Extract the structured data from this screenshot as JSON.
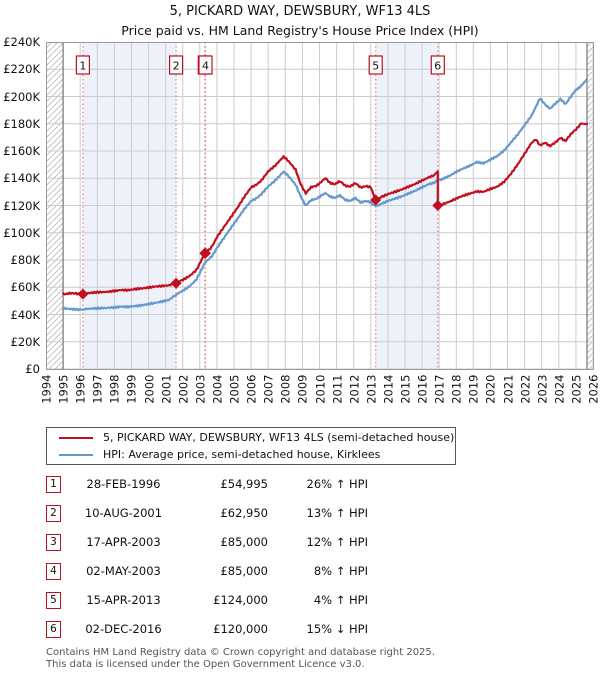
{
  "title": "5, PICKARD WAY, DEWSBURY, WF13 4LS",
  "subtitle": "Price paid vs. HM Land Registry's House Price Index (HPI)",
  "chart_data": {
    "type": "line",
    "x_axis": {
      "min": 1994,
      "max": 2026,
      "ticks": [
        1994,
        1995,
        1996,
        1997,
        1998,
        1999,
        2000,
        2001,
        2002,
        2003,
        2004,
        2005,
        2006,
        2007,
        2008,
        2009,
        2010,
        2011,
        2012,
        2013,
        2014,
        2015,
        2016,
        2017,
        2018,
        2019,
        2020,
        2021,
        2022,
        2023,
        2024,
        2025,
        2026
      ]
    },
    "y_axis": {
      "min": 0,
      "max": 240,
      "unit": "£K",
      "tick_step": 20,
      "tick_labels": [
        "£0",
        "£20K",
        "£40K",
        "£60K",
        "£80K",
        "£100K",
        "£120K",
        "£140K",
        "£160K",
        "£180K",
        "£200K",
        "£220K",
        "£240K"
      ]
    },
    "data_year_range": [
      1995.0,
      2025.65
    ],
    "grid": true,
    "colors": {
      "price_line": "#c01020",
      "hpi_line": "#6699cc",
      "sale_vline": "#ee8888",
      "band": "#edf2fa",
      "grid": "#cccccc",
      "border": "#999999",
      "hatch": "#bbbbbb",
      "marker_box_border": "#bb1122"
    },
    "shaded_bands": [
      [
        1996.16,
        2001.61
      ],
      [
        2003.29,
        2003.33
      ],
      [
        2013.29,
        2016.92
      ]
    ],
    "sales_markers": [
      {
        "n": "1",
        "year": 1996.16,
        "value_k": 55.0
      },
      {
        "n": "2",
        "year": 2001.61,
        "value_k": 62.95
      },
      {
        "n": "3",
        "year": 2003.29,
        "value_k": 85.0
      },
      {
        "n": "4",
        "year": 2003.33,
        "value_k": 85.0
      },
      {
        "n": "5",
        "year": 2013.29,
        "value_k": 124.0
      },
      {
        "n": "6",
        "year": 2016.92,
        "value_k": 120.0
      }
    ],
    "series": [
      {
        "name": "5, PICKARD WAY, DEWSBURY, WF13 4LS (semi-detached house)",
        "color": "#c01020",
        "points": [
          [
            1995.0,
            55.3
          ],
          [
            1995.3,
            55.5
          ],
          [
            1995.6,
            55.2
          ],
          [
            1995.9,
            55.4
          ],
          [
            1996.16,
            55.0
          ],
          [
            1996.5,
            55.4
          ],
          [
            1997.0,
            56.2
          ],
          [
            1997.5,
            56.8
          ],
          [
            1998.0,
            57.6
          ],
          [
            1998.4,
            58.3
          ],
          [
            1998.8,
            58.0
          ],
          [
            1999.2,
            58.6
          ],
          [
            1999.6,
            59.0
          ],
          [
            2000.0,
            59.5
          ],
          [
            2000.4,
            60.2
          ],
          [
            2000.8,
            60.6
          ],
          [
            2001.2,
            61.2
          ],
          [
            2001.61,
            62.95
          ],
          [
            2002.0,
            65.5
          ],
          [
            2002.4,
            68.5
          ],
          [
            2002.8,
            73.0
          ],
          [
            2003.29,
            85.0
          ],
          [
            2003.33,
            85.0
          ],
          [
            2003.7,
            90.0
          ],
          [
            2004.0,
            97.0
          ],
          [
            2004.4,
            104.0
          ],
          [
            2004.8,
            111.0
          ],
          [
            2005.2,
            118.0
          ],
          [
            2005.6,
            126.0
          ],
          [
            2006.0,
            133.0
          ],
          [
            2006.3,
            135.5
          ],
          [
            2006.6,
            138.5
          ],
          [
            2007.0,
            145.0
          ],
          [
            2007.4,
            149.0
          ],
          [
            2007.9,
            156.0
          ],
          [
            2008.2,
            152.0
          ],
          [
            2008.6,
            146.0
          ],
          [
            2008.9,
            136.0
          ],
          [
            2009.2,
            129.0
          ],
          [
            2009.5,
            133.0
          ],
          [
            2009.8,
            134.5
          ],
          [
            2010.1,
            137.5
          ],
          [
            2010.35,
            140.5
          ],
          [
            2010.6,
            137.0
          ],
          [
            2010.9,
            135.5
          ],
          [
            2011.2,
            137.5
          ],
          [
            2011.5,
            135.0
          ],
          [
            2011.8,
            134.0
          ],
          [
            2012.1,
            136.0
          ],
          [
            2012.4,
            133.5
          ],
          [
            2012.7,
            134.5
          ],
          [
            2013.0,
            133.0
          ],
          [
            2013.29,
            124.0
          ],
          [
            2013.6,
            126.5
          ],
          [
            2014.0,
            128.5
          ],
          [
            2014.4,
            130.0
          ],
          [
            2014.8,
            131.5
          ],
          [
            2015.2,
            133.5
          ],
          [
            2015.6,
            135.5
          ],
          [
            2016.0,
            138.0
          ],
          [
            2016.4,
            140.5
          ],
          [
            2016.7,
            142.5
          ],
          [
            2016.92,
            145.0
          ],
          [
            2016.92,
            120.0
          ],
          [
            2017.2,
            121.0
          ],
          [
            2017.6,
            123.0
          ],
          [
            2018.0,
            125.5
          ],
          [
            2018.4,
            127.5
          ],
          [
            2018.8,
            129.0
          ],
          [
            2019.2,
            130.5
          ],
          [
            2019.6,
            130.0
          ],
          [
            2020.0,
            132.0
          ],
          [
            2020.4,
            133.5
          ],
          [
            2020.8,
            137.0
          ],
          [
            2021.2,
            143.0
          ],
          [
            2021.6,
            150.0
          ],
          [
            2022.0,
            158.0
          ],
          [
            2022.4,
            166.0
          ],
          [
            2022.65,
            168.5
          ],
          [
            2022.9,
            164.0
          ],
          [
            2023.2,
            166.5
          ],
          [
            2023.5,
            163.5
          ],
          [
            2023.8,
            166.0
          ],
          [
            2024.1,
            170.0
          ],
          [
            2024.4,
            167.5
          ],
          [
            2024.7,
            172.0
          ],
          [
            2025.0,
            176.0
          ],
          [
            2025.3,
            180.5
          ],
          [
            2025.65,
            180.0
          ]
        ]
      },
      {
        "name": "HPI: Average price, semi-detached house, Kirklees",
        "color": "#6699cc",
        "points": [
          [
            1995.0,
            44.8
          ],
          [
            1995.4,
            44.4
          ],
          [
            1995.8,
            44.1
          ],
          [
            1996.16,
            43.6
          ],
          [
            1996.5,
            43.9
          ],
          [
            1997.0,
            44.4
          ],
          [
            1997.5,
            45.0
          ],
          [
            1998.0,
            45.6
          ],
          [
            1998.4,
            46.1
          ],
          [
            1998.8,
            45.8
          ],
          [
            1999.2,
            46.2
          ],
          [
            1999.6,
            46.6
          ],
          [
            2000.0,
            47.4
          ],
          [
            2000.4,
            48.2
          ],
          [
            2000.8,
            49.2
          ],
          [
            2001.2,
            50.5
          ],
          [
            2001.61,
            54.5
          ],
          [
            2002.0,
            57.5
          ],
          [
            2002.4,
            61.0
          ],
          [
            2002.8,
            66.0
          ],
          [
            2003.3,
            78.0
          ],
          [
            2003.7,
            83.0
          ],
          [
            2004.0,
            89.0
          ],
          [
            2004.4,
            96.0
          ],
          [
            2004.8,
            103.0
          ],
          [
            2005.2,
            110.0
          ],
          [
            2005.6,
            117.0
          ],
          [
            2006.0,
            123.0
          ],
          [
            2006.3,
            125.5
          ],
          [
            2006.6,
            128.5
          ],
          [
            2007.0,
            134.0
          ],
          [
            2007.4,
            138.0
          ],
          [
            2007.9,
            145.0
          ],
          [
            2008.2,
            141.0
          ],
          [
            2008.6,
            135.0
          ],
          [
            2008.9,
            127.0
          ],
          [
            2009.2,
            120.0
          ],
          [
            2009.5,
            123.5
          ],
          [
            2009.8,
            125.0
          ],
          [
            2010.1,
            127.5
          ],
          [
            2010.35,
            129.5
          ],
          [
            2010.6,
            127.0
          ],
          [
            2010.9,
            125.5
          ],
          [
            2011.2,
            127.0
          ],
          [
            2011.5,
            124.5
          ],
          [
            2011.8,
            123.5
          ],
          [
            2012.1,
            125.0
          ],
          [
            2012.4,
            122.5
          ],
          [
            2012.7,
            123.5
          ],
          [
            2013.0,
            122.0
          ],
          [
            2013.29,
            119.5
          ],
          [
            2013.6,
            121.5
          ],
          [
            2014.0,
            123.5
          ],
          [
            2014.4,
            125.0
          ],
          [
            2014.8,
            126.5
          ],
          [
            2015.2,
            128.5
          ],
          [
            2015.6,
            130.5
          ],
          [
            2016.0,
            133.0
          ],
          [
            2016.4,
            135.5
          ],
          [
            2016.7,
            137.0
          ],
          [
            2016.92,
            139.0
          ],
          [
            2017.2,
            139.5
          ],
          [
            2017.6,
            142.0
          ],
          [
            2018.0,
            145.0
          ],
          [
            2018.4,
            147.5
          ],
          [
            2018.8,
            149.5
          ],
          [
            2019.2,
            152.0
          ],
          [
            2019.6,
            151.0
          ],
          [
            2020.0,
            153.5
          ],
          [
            2020.4,
            156.0
          ],
          [
            2020.8,
            160.0
          ],
          [
            2021.2,
            166.0
          ],
          [
            2021.6,
            172.0
          ],
          [
            2022.0,
            179.0
          ],
          [
            2022.4,
            186.0
          ],
          [
            2022.9,
            198.5
          ],
          [
            2023.2,
            194.5
          ],
          [
            2023.5,
            191.0
          ],
          [
            2023.8,
            194.5
          ],
          [
            2024.1,
            198.5
          ],
          [
            2024.4,
            194.5
          ],
          [
            2024.7,
            199.5
          ],
          [
            2025.0,
            205.0
          ],
          [
            2025.3,
            208.0
          ],
          [
            2025.65,
            213.0
          ]
        ]
      }
    ]
  },
  "legend": {
    "items": [
      {
        "label": "5, PICKARD WAY, DEWSBURY, WF13 4LS (semi-detached house)",
        "color": "#c01020"
      },
      {
        "label": "HPI: Average price, semi-detached house, Kirklees",
        "color": "#6699cc"
      }
    ]
  },
  "table": {
    "rows": [
      {
        "num": "1",
        "date": "28-FEB-1996",
        "price": "£54,995",
        "hpi": "26% ↑ HPI"
      },
      {
        "num": "2",
        "date": "10-AUG-2001",
        "price": "£62,950",
        "hpi": "13% ↑ HPI"
      },
      {
        "num": "3",
        "date": "17-APR-2003",
        "price": "£85,000",
        "hpi": "12% ↑ HPI"
      },
      {
        "num": "4",
        "date": "02-MAY-2003",
        "price": "£85,000",
        "hpi": "8% ↑ HPI"
      },
      {
        "num": "5",
        "date": "15-APR-2013",
        "price": "£124,000",
        "hpi": "4% ↑ HPI"
      },
      {
        "num": "6",
        "date": "02-DEC-2016",
        "price": "£120,000",
        "hpi": "15% ↓ HPI"
      }
    ]
  },
  "footer": {
    "line1": "Contains HM Land Registry data © Crown copyright and database right 2025.",
    "line2": "This data is licensed under the Open Government Licence v3.0."
  }
}
